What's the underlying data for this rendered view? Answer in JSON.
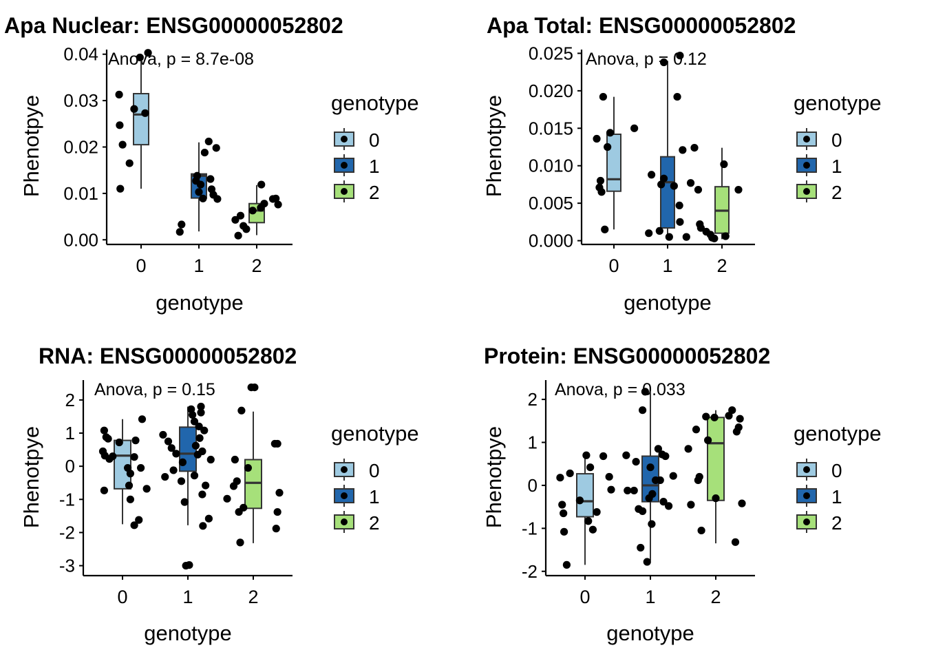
{
  "colors": {
    "genotype_0": "#9ecae1",
    "genotype_1": "#2166ac",
    "genotype_2": "#a6e07a",
    "points": "#000000",
    "axis": "#000000"
  },
  "chart_data": [
    {
      "type": "box",
      "title": "Apa Nuclear: ENSG00000052802",
      "xlabel": "genotype",
      "ylabel": "Phenotpye",
      "annotation": "Anova, p = 8.7e-08",
      "categories": [
        "0",
        "1",
        "2"
      ],
      "ylim": [
        -0.001,
        0.041
      ],
      "yticks": [
        0.0,
        0.01,
        0.02,
        0.03,
        0.04
      ],
      "ytick_labels": [
        "0.00",
        "0.01",
        "0.02",
        "0.03",
        "0.04"
      ],
      "boxes": [
        {
          "q1": 0.0205,
          "median": 0.027,
          "q3": 0.0315,
          "whisker_low": 0.011,
          "whisker_high": 0.04
        },
        {
          "q1": 0.009,
          "median": 0.0138,
          "q3": 0.0142,
          "whisker_low": 0.0018,
          "whisker_high": 0.021
        },
        {
          "q1": 0.0037,
          "median": 0.0063,
          "q3": 0.0078,
          "whisker_low": 0.001,
          "whisker_high": 0.0118
        }
      ],
      "points": [
        {
          "x": -0.38,
          "y": 0.0313
        },
        {
          "x": -0.37,
          "y": 0.0247
        },
        {
          "x": -0.32,
          "y": 0.0205
        },
        {
          "x": -0.36,
          "y": 0.011
        },
        {
          "x": -0.2,
          "y": 0.0165
        },
        {
          "x": -0.12,
          "y": 0.0282
        },
        {
          "x": 0.07,
          "y": 0.0273
        },
        {
          "x": -0.02,
          "y": 0.0393
        },
        {
          "x": 0.12,
          "y": 0.0403
        },
        {
          "x": 0.7,
          "y": 0.0033
        },
        {
          "x": 0.67,
          "y": 0.0017
        },
        {
          "x": 0.95,
          "y": 0.0127
        },
        {
          "x": 0.97,
          "y": 0.0138
        },
        {
          "x": 1.0,
          "y": 0.0103
        },
        {
          "x": 1.03,
          "y": 0.0119
        },
        {
          "x": 1.07,
          "y": 0.0089
        },
        {
          "x": 1.1,
          "y": 0.0188
        },
        {
          "x": 1.17,
          "y": 0.0212
        },
        {
          "x": 1.2,
          "y": 0.0131
        },
        {
          "x": 1.22,
          "y": 0.0109
        },
        {
          "x": 1.25,
          "y": 0.0097
        },
        {
          "x": 1.3,
          "y": 0.0198
        },
        {
          "x": 1.32,
          "y": 0.0088
        },
        {
          "x": 1.63,
          "y": 0.0043
        },
        {
          "x": 1.68,
          "y": 0.0009
        },
        {
          "x": 1.72,
          "y": 0.0052
        },
        {
          "x": 1.77,
          "y": 0.003
        },
        {
          "x": 1.82,
          "y": 0.0023
        },
        {
          "x": 1.93,
          "y": 0.0063
        },
        {
          "x": 2.07,
          "y": 0.0069
        },
        {
          "x": 2.08,
          "y": 0.0119
        },
        {
          "x": 2.13,
          "y": 0.0078
        },
        {
          "x": 2.28,
          "y": 0.0088
        },
        {
          "x": 2.33,
          "y": 0.0089
        },
        {
          "x": 2.37,
          "y": 0.0076
        }
      ],
      "legend": {
        "title": "genotype",
        "labels": [
          "0",
          "1",
          "2"
        ]
      }
    },
    {
      "type": "box",
      "title": "Apa Total: ENSG00000052802",
      "xlabel": "genotype",
      "ylabel": "Phenotpye",
      "annotation": "Anova, p = 0.12",
      "categories": [
        "0",
        "1",
        "2"
      ],
      "ylim": [
        -0.0005,
        0.0255
      ],
      "yticks": [
        0.0,
        0.005,
        0.01,
        0.015,
        0.02,
        0.025
      ],
      "ytick_labels": [
        "0.000",
        "0.005",
        "0.010",
        "0.015",
        "0.020",
        "0.025"
      ],
      "boxes": [
        {
          "q1": 0.0066,
          "median": 0.0082,
          "q3": 0.0142,
          "whisker_low": 0.0015,
          "whisker_high": 0.0192
        },
        {
          "q1": 0.0017,
          "median": 0.0078,
          "q3": 0.0112,
          "whisker_low": 0.0003,
          "whisker_high": 0.024
        },
        {
          "q1": 0.001,
          "median": 0.004,
          "q3": 0.0072,
          "whisker_low": 0.0002,
          "whisker_high": 0.0124
        }
      ],
      "points": [
        {
          "x": -0.32,
          "y": 0.0136
        },
        {
          "x": -0.25,
          "y": 0.008
        },
        {
          "x": -0.23,
          "y": 0.0065
        },
        {
          "x": -0.2,
          "y": 0.0192
        },
        {
          "x": -0.17,
          "y": 0.0015
        },
        {
          "x": -0.07,
          "y": 0.0144
        },
        {
          "x": 0.38,
          "y": 0.015
        },
        {
          "x": -0.27,
          "y": 0.0071
        },
        {
          "x": -0.12,
          "y": 0.0125
        },
        {
          "x": 0.65,
          "y": 0.001
        },
        {
          "x": 0.7,
          "y": 0.0088
        },
        {
          "x": 0.85,
          "y": 0.0013
        },
        {
          "x": 0.88,
          "y": 0.0075
        },
        {
          "x": 0.93,
          "y": 0.0083
        },
        {
          "x": 0.93,
          "y": 0.0238
        },
        {
          "x": 1.03,
          "y": 0.0005
        },
        {
          "x": 1.12,
          "y": 0.0073
        },
        {
          "x": 1.18,
          "y": 0.0192
        },
        {
          "x": 1.22,
          "y": 0.0047
        },
        {
          "x": 1.23,
          "y": 0.0025
        },
        {
          "x": 1.28,
          "y": 0.0121
        },
        {
          "x": 1.35,
          "y": 0.0005
        },
        {
          "x": 1.43,
          "y": 0.0077
        },
        {
          "x": 1.5,
          "y": 0.0124
        },
        {
          "x": 1.23,
          "y": 0.0247
        },
        {
          "x": 1.57,
          "y": 0.0068
        },
        {
          "x": 1.6,
          "y": 0.0022
        },
        {
          "x": 1.62,
          "y": 0.0017
        },
        {
          "x": 1.72,
          "y": 0.0012
        },
        {
          "x": 1.8,
          "y": 0.0008
        },
        {
          "x": 1.83,
          "y": 0.0004
        },
        {
          "x": 1.87,
          "y": 0.0003
        },
        {
          "x": 2.05,
          "y": 0.0102
        },
        {
          "x": 2.08,
          "y": 0.0006
        },
        {
          "x": 2.32,
          "y": 0.0068
        }
      ],
      "legend": {
        "title": "genotype",
        "labels": [
          "0",
          "1",
          "2"
        ]
      }
    },
    {
      "type": "box",
      "title": "RNA: ENSG00000052802",
      "xlabel": "genotype",
      "ylabel": "Phenotpye",
      "annotation": "Anova, p = 0.15",
      "categories": [
        "0",
        "1",
        "2"
      ],
      "ylim": [
        -3.3,
        2.6
      ],
      "yticks": [
        -3,
        -2,
        -1,
        0,
        1,
        2
      ],
      "ytick_labels": [
        "-3",
        "-2",
        "-1",
        "0",
        "1",
        "2"
      ],
      "boxes": [
        {
          "q1": -0.68,
          "median": 0.32,
          "q3": 0.78,
          "whisker_low": -1.75,
          "whisker_high": 1.42
        },
        {
          "q1": -0.15,
          "median": 0.38,
          "q3": 1.18,
          "whisker_low": -1.78,
          "whisker_high": 1.8
        },
        {
          "q1": -1.27,
          "median": -0.5,
          "q3": 0.2,
          "whisker_low": -2.32,
          "whisker_high": 1.65
        }
      ],
      "points": [
        {
          "x": -0.28,
          "y": 1.08
        },
        {
          "x": -0.25,
          "y": 0.88
        },
        {
          "x": -0.22,
          "y": 0.83
        },
        {
          "x": -0.3,
          "y": 0.45
        },
        {
          "x": -0.27,
          "y": 0.32
        },
        {
          "x": -0.2,
          "y": 0.22
        },
        {
          "x": -0.28,
          "y": -0.73
        },
        {
          "x": -0.15,
          "y": 0.3
        },
        {
          "x": -0.05,
          "y": 0.72
        },
        {
          "x": 0.08,
          "y": -0.05
        },
        {
          "x": 0.12,
          "y": -0.22
        },
        {
          "x": 0.1,
          "y": -0.58
        },
        {
          "x": 0.12,
          "y": -1.0
        },
        {
          "x": 0.18,
          "y": 0.28
        },
        {
          "x": 0.2,
          "y": 0.78
        },
        {
          "x": 0.25,
          "y": -1.62
        },
        {
          "x": 0.3,
          "y": 1.42
        },
        {
          "x": 0.18,
          "y": -1.78
        },
        {
          "x": 0.37,
          "y": -0.68
        },
        {
          "x": 0.28,
          "y": -0.05
        },
        {
          "x": 0.62,
          "y": 0.95
        },
        {
          "x": 0.65,
          "y": -0.32
        },
        {
          "x": 0.7,
          "y": 0.75
        },
        {
          "x": 0.75,
          "y": 0.55
        },
        {
          "x": 0.78,
          "y": -0.12
        },
        {
          "x": 0.82,
          "y": 0.38
        },
        {
          "x": 0.9,
          "y": -0.45
        },
        {
          "x": 0.92,
          "y": 0.12
        },
        {
          "x": 0.95,
          "y": -1.08
        },
        {
          "x": 1.02,
          "y": -2.98
        },
        {
          "x": 0.97,
          "y": -3.0
        },
        {
          "x": 1.05,
          "y": 1.72
        },
        {
          "x": 1.07,
          "y": 1.55
        },
        {
          "x": 1.1,
          "y": 1.35
        },
        {
          "x": 1.1,
          "y": -0.28
        },
        {
          "x": 1.12,
          "y": 0.62
        },
        {
          "x": 1.15,
          "y": 0.35
        },
        {
          "x": 1.17,
          "y": 1.2
        },
        {
          "x": 1.18,
          "y": 0.85
        },
        {
          "x": 1.2,
          "y": 1.62
        },
        {
          "x": 1.2,
          "y": 1.8
        },
        {
          "x": 1.22,
          "y": 0.45
        },
        {
          "x": 1.22,
          "y": -0.85
        },
        {
          "x": 1.23,
          "y": -1.8
        },
        {
          "x": 1.25,
          "y": 1.08
        },
        {
          "x": 1.27,
          "y": -0.58
        },
        {
          "x": 1.32,
          "y": -1.58
        },
        {
          "x": 1.35,
          "y": 0.2
        },
        {
          "x": 1.6,
          "y": -0.98
        },
        {
          "x": 1.72,
          "y": 0.2
        },
        {
          "x": 1.75,
          "y": -0.45
        },
        {
          "x": 1.78,
          "y": -1.38
        },
        {
          "x": 1.82,
          "y": 1.68
        },
        {
          "x": 1.85,
          "y": -1.25
        },
        {
          "x": 1.7,
          "y": -0.6
        },
        {
          "x": 1.8,
          "y": -2.3
        },
        {
          "x": 1.92,
          "y": -0.05
        },
        {
          "x": 1.97,
          "y": 2.38
        },
        {
          "x": 2.02,
          "y": 2.38
        },
        {
          "x": 2.33,
          "y": 0.68
        },
        {
          "x": 2.37,
          "y": 0.68
        },
        {
          "x": 2.37,
          "y": -1.38
        },
        {
          "x": 2.35,
          "y": -1.88
        },
        {
          "x": 2.4,
          "y": -0.8
        }
      ],
      "legend": {
        "title": "genotype",
        "labels": [
          "0",
          "1",
          "2"
        ]
      }
    },
    {
      "type": "box",
      "title": "Protein: ENSG00000052802",
      "xlabel": "genotype",
      "ylabel": "Phenotpye",
      "annotation": "Anova, p = 0.033",
      "categories": [
        "0",
        "1",
        "2"
      ],
      "ylim": [
        -2.1,
        2.45
      ],
      "yticks": [
        -2,
        -1,
        0,
        1,
        2
      ],
      "ytick_labels": [
        "-2",
        "-1",
        "0",
        "1",
        "2"
      ],
      "boxes": [
        {
          "q1": -0.73,
          "median": -0.37,
          "q3": 0.27,
          "whisker_low": -1.85,
          "whisker_high": 0.7
        },
        {
          "q1": -0.38,
          "median": 0.0,
          "q3": 0.68,
          "whisker_low": -1.75,
          "whisker_high": 2.18
        },
        {
          "q1": -0.35,
          "median": 0.98,
          "q3": 1.58,
          "whisker_low": -1.35,
          "whisker_high": 1.75
        }
      ],
      "points": [
        {
          "x": -0.38,
          "y": 0.18
        },
        {
          "x": -0.35,
          "y": -0.45
        },
        {
          "x": -0.33,
          "y": -0.65
        },
        {
          "x": -0.32,
          "y": -1.08
        },
        {
          "x": -0.28,
          "y": -1.85
        },
        {
          "x": -0.23,
          "y": 0.28
        },
        {
          "x": -0.08,
          "y": -0.35
        },
        {
          "x": 0.02,
          "y": 0.7
        },
        {
          "x": 0.05,
          "y": -0.83
        },
        {
          "x": 0.08,
          "y": 0.42
        },
        {
          "x": 0.12,
          "y": -1.03
        },
        {
          "x": 0.18,
          "y": -0.62
        },
        {
          "x": 0.28,
          "y": 0.68
        },
        {
          "x": 0.37,
          "y": 0.2
        },
        {
          "x": 0.4,
          "y": -0.1
        },
        {
          "x": 0.63,
          "y": 0.7
        },
        {
          "x": 0.65,
          "y": -0.12
        },
        {
          "x": 0.75,
          "y": -0.12
        },
        {
          "x": 0.78,
          "y": 0.55
        },
        {
          "x": 0.82,
          "y": -0.55
        },
        {
          "x": 0.85,
          "y": -1.45
        },
        {
          "x": 0.88,
          "y": -0.6
        },
        {
          "x": 0.88,
          "y": 1.75
        },
        {
          "x": 0.92,
          "y": 2.18
        },
        {
          "x": 0.95,
          "y": -1.78
        },
        {
          "x": 0.98,
          "y": -0.3
        },
        {
          "x": 1.0,
          "y": 0.42
        },
        {
          "x": 1.02,
          "y": -0.9
        },
        {
          "x": 1.03,
          "y": -0.2
        },
        {
          "x": 1.08,
          "y": 0.12
        },
        {
          "x": 1.12,
          "y": 0.85
        },
        {
          "x": 1.15,
          "y": 0.12
        },
        {
          "x": 1.18,
          "y": 0.72
        },
        {
          "x": 1.2,
          "y": -0.38
        },
        {
          "x": 1.23,
          "y": 0.68
        },
        {
          "x": 1.28,
          "y": -0.48
        },
        {
          "x": 1.35,
          "y": 0.22
        },
        {
          "x": 1.62,
          "y": -0.45
        },
        {
          "x": 1.7,
          "y": 1.3
        },
        {
          "x": 1.73,
          "y": 0.12
        },
        {
          "x": 1.78,
          "y": -1.05
        },
        {
          "x": 1.85,
          "y": 1.6
        },
        {
          "x": 1.88,
          "y": 1.05
        },
        {
          "x": 1.98,
          "y": 1.58
        },
        {
          "x": 2.0,
          "y": -0.3
        },
        {
          "x": 2.2,
          "y": 1.62
        },
        {
          "x": 2.25,
          "y": 1.75
        },
        {
          "x": 2.3,
          "y": -1.32
        },
        {
          "x": 2.32,
          "y": 1.25
        },
        {
          "x": 2.35,
          "y": 1.35
        },
        {
          "x": 2.37,
          "y": 1.55
        },
        {
          "x": 2.4,
          "y": -0.42
        },
        {
          "x": 1.58,
          "y": 0.85
        },
        {
          "x": 1.75,
          "y": 0.2
        }
      ],
      "legend": {
        "title": "genotype",
        "labels": [
          "0",
          "1",
          "2"
        ]
      }
    }
  ]
}
